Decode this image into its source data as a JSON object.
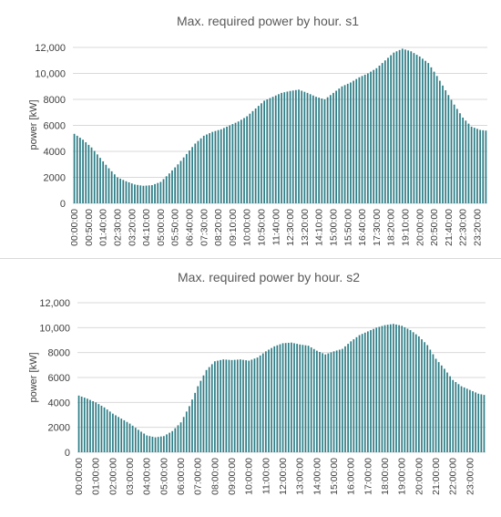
{
  "chart_data": [
    {
      "type": "bar",
      "title": "Max. required power by hour. s1",
      "xlabel": "",
      "ylabel": "power [kW]",
      "ylim": [
        0,
        12000
      ],
      "yticks": [
        "0",
        "2000",
        "4000",
        "6000",
        "8000",
        "10,000",
        "12,000"
      ],
      "ytick_values": [
        0,
        2000,
        4000,
        6000,
        8000,
        10000,
        12000
      ],
      "xtick_labels": [
        "00:00:00",
        "00:50:00",
        "01:40:00",
        "02:30:00",
        "03:20:00",
        "04:10:00",
        "05:00:00",
        "05:50:00",
        "06:40:00",
        "07:30:00",
        "08:20:00",
        "09:10:00",
        "10:00:00",
        "10:50:00",
        "11:40:00",
        "12:30:00",
        "13:20:00",
        "14:10:00",
        "15:00:00",
        "15:50:00",
        "16:40:00",
        "17:30:00",
        "18:20:00",
        "19:10:00",
        "20:00:00",
        "20:50:00",
        "21:40:00",
        "22:30:00",
        "23:20:00"
      ],
      "interval_minutes": 10,
      "bar_color": "#2e7d86",
      "grid": true,
      "anchors": [
        [
          0,
          5350
        ],
        [
          30,
          4900
        ],
        [
          60,
          4300
        ],
        [
          90,
          3500
        ],
        [
          120,
          2700
        ],
        [
          150,
          2000
        ],
        [
          180,
          1700
        ],
        [
          210,
          1450
        ],
        [
          240,
          1350
        ],
        [
          270,
          1400
        ],
        [
          300,
          1650
        ],
        [
          330,
          2300
        ],
        [
          360,
          3000
        ],
        [
          390,
          3800
        ],
        [
          420,
          4600
        ],
        [
          450,
          5200
        ],
        [
          480,
          5500
        ],
        [
          510,
          5700
        ],
        [
          540,
          6000
        ],
        [
          570,
          6300
        ],
        [
          600,
          6700
        ],
        [
          630,
          7300
        ],
        [
          660,
          7900
        ],
        [
          690,
          8200
        ],
        [
          720,
          8500
        ],
        [
          750,
          8650
        ],
        [
          780,
          8750
        ],
        [
          810,
          8500
        ],
        [
          840,
          8200
        ],
        [
          870,
          8000
        ],
        [
          900,
          8500
        ],
        [
          930,
          9000
        ],
        [
          960,
          9300
        ],
        [
          990,
          9700
        ],
        [
          1020,
          10000
        ],
        [
          1050,
          10400
        ],
        [
          1080,
          11000
        ],
        [
          1110,
          11600
        ],
        [
          1140,
          11900
        ],
        [
          1170,
          11700
        ],
        [
          1200,
          11300
        ],
        [
          1230,
          10800
        ],
        [
          1260,
          9800
        ],
        [
          1290,
          8700
        ],
        [
          1320,
          7600
        ],
        [
          1350,
          6600
        ],
        [
          1380,
          5900
        ],
        [
          1410,
          5650
        ],
        [
          1430,
          5600
        ]
      ]
    },
    {
      "type": "bar",
      "title": "Max. required power by hour. s2",
      "xlabel": "",
      "ylabel": "power [kW]",
      "ylim": [
        0,
        12000
      ],
      "yticks": [
        "0",
        "2000",
        "4000",
        "6000",
        "8000",
        "10,000",
        "12,000"
      ],
      "ytick_values": [
        0,
        2000,
        4000,
        6000,
        8000,
        10000,
        12000
      ],
      "xtick_labels": [
        "00:00:00",
        "01:00:00",
        "02:00:00",
        "03:00:00",
        "04:00:00",
        "05:00:00",
        "06:00:00",
        "07:00:00",
        "08:00:00",
        "09:00:00",
        "10:00:00",
        "11:00:00",
        "12:00:00",
        "13:00:00",
        "14:00:00",
        "15:00:00",
        "16:00:00",
        "17:00:00",
        "18:00:00",
        "19:00:00",
        "20:00:00",
        "21:00:00",
        "22:00:00",
        "23:00:00"
      ],
      "interval_minutes": 10,
      "bar_color": "#2e7d86",
      "grid": true,
      "anchors": [
        [
          0,
          4550
        ],
        [
          30,
          4300
        ],
        [
          60,
          4000
        ],
        [
          90,
          3600
        ],
        [
          120,
          3100
        ],
        [
          150,
          2700
        ],
        [
          180,
          2300
        ],
        [
          210,
          1800
        ],
        [
          240,
          1350
        ],
        [
          270,
          1200
        ],
        [
          300,
          1300
        ],
        [
          330,
          1700
        ],
        [
          360,
          2400
        ],
        [
          390,
          3700
        ],
        [
          420,
          5300
        ],
        [
          450,
          6600
        ],
        [
          480,
          7300
        ],
        [
          510,
          7450
        ],
        [
          540,
          7400
        ],
        [
          570,
          7450
        ],
        [
          600,
          7350
        ],
        [
          630,
          7600
        ],
        [
          660,
          8100
        ],
        [
          690,
          8500
        ],
        [
          720,
          8750
        ],
        [
          750,
          8800
        ],
        [
          780,
          8650
        ],
        [
          810,
          8550
        ],
        [
          840,
          8150
        ],
        [
          870,
          7850
        ],
        [
          900,
          8100
        ],
        [
          930,
          8300
        ],
        [
          960,
          8900
        ],
        [
          990,
          9400
        ],
        [
          1020,
          9700
        ],
        [
          1050,
          10000
        ],
        [
          1080,
          10200
        ],
        [
          1110,
          10300
        ],
        [
          1140,
          10150
        ],
        [
          1170,
          9800
        ],
        [
          1200,
          9300
        ],
        [
          1230,
          8600
        ],
        [
          1260,
          7500
        ],
        [
          1290,
          6700
        ],
        [
          1320,
          5800
        ],
        [
          1350,
          5300
        ],
        [
          1380,
          5000
        ],
        [
          1410,
          4700
        ],
        [
          1430,
          4600
        ]
      ]
    }
  ]
}
